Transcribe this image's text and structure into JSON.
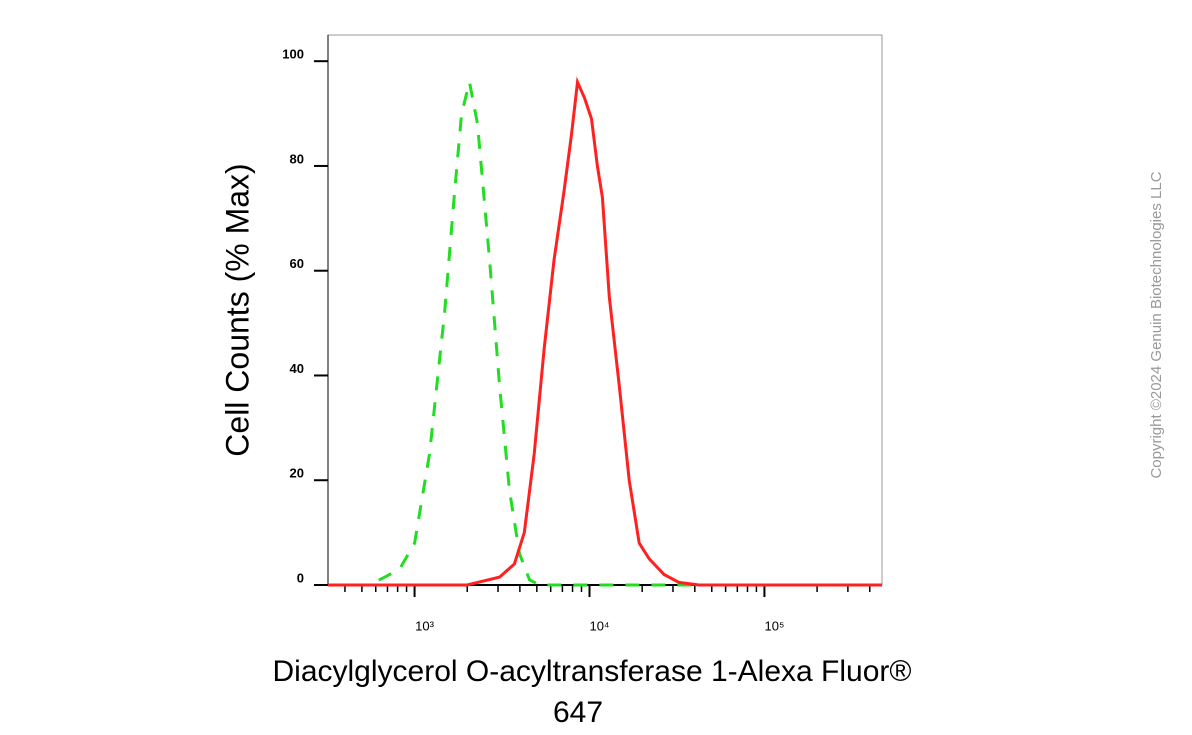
{
  "chart_data": {
    "type": "line",
    "x_label": [
      "Diacylglycerol O-acyltransferase 1-Alexa Fluor®",
      "647"
    ],
    "y_label": "Cell Counts (% Max)",
    "copyright": "Copyright ©2024 Genuin Biotechnologies LLC",
    "x_scale": "log",
    "xlim": [
      320,
      470000
    ],
    "ylim": [
      0,
      105
    ],
    "xticks": [
      {
        "value": 1000,
        "label": "10³"
      },
      {
        "value": 10000,
        "label": "10⁴"
      },
      {
        "value": 100000,
        "label": "10⁵"
      }
    ],
    "yticks": [
      0,
      20,
      40,
      60,
      80,
      100
    ],
    "minor_xticks": true,
    "series": [
      {
        "color": "#22dd22",
        "dash": true,
        "x": [
          320,
          553,
          820,
          1000,
          1218,
          1484,
          1693,
          1857,
          2060,
          2290,
          2685,
          3062,
          3490,
          3980,
          4540,
          5180,
          470000
        ],
        "values": [
          0,
          0,
          3,
          8,
          25,
          52,
          75,
          90,
          96,
          88,
          62,
          38,
          18,
          6,
          1,
          0,
          0
        ]
      },
      {
        "color": "#ff2020",
        "dash": false,
        "x": [
          320,
          2000,
          2290,
          3062,
          3720,
          4240,
          4830,
          5500,
          6270,
          7140,
          7890,
          8540,
          9360,
          10270,
          11100,
          11850,
          12980,
          14800,
          16870,
          19240,
          21940,
          26700,
          32500,
          42200,
          470000
        ],
        "values": [
          0,
          0,
          0.5,
          1.5,
          4,
          10,
          25,
          45,
          62,
          75,
          86,
          96,
          93,
          89,
          80,
          74,
          55,
          38,
          20,
          8,
          5,
          2,
          0.5,
          0,
          0
        ]
      }
    ]
  }
}
